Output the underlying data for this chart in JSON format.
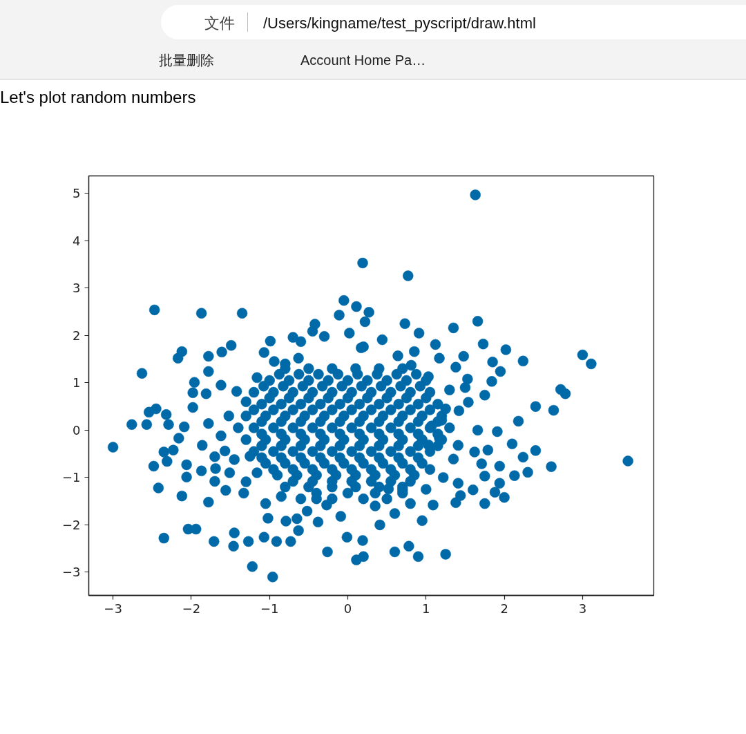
{
  "chart_data": {
    "type": "scatter",
    "title": "Let's plot random numbers",
    "annotations": [
      "文件",
      "/Users/kingname/test_pyscript/draw.html",
      "批量删除",
      "Account Home Pa…"
    ],
    "color": "#0069a8",
    "marker": "circle",
    "grid": false,
    "xlim": [
      -3.31,
      3.91
    ],
    "ylim": [
      -3.49,
      5.37
    ],
    "xticks": [
      {
        "value": -3,
        "label": "−3"
      },
      {
        "value": -2,
        "label": "−2"
      },
      {
        "value": -1,
        "label": "−1"
      },
      0,
      1,
      2,
      3
    ],
    "yticks": [
      {
        "value": -3,
        "label": "−3"
      },
      {
        "value": -2,
        "label": "−2"
      },
      {
        "value": -1,
        "label": "−1"
      },
      0,
      1,
      2,
      3,
      4,
      5
    ],
    "x": [
      1.63,
      0.19,
      0.77,
      -2.47,
      -1.87,
      -1.35,
      -2.63,
      -3.0,
      3.58,
      3.0,
      3.11,
      2.72,
      1.66,
      2.24,
      2.02,
      1.35,
      0.73,
      1.73,
      1.48,
      1.85,
      1.84,
      1.95,
      2.4,
      2.63,
      2.78,
      2.18,
      2.1,
      2.4,
      2.24,
      2.6,
      2.3,
      2.13,
      1.94,
      1.75,
      1.94,
      2.0,
      1.75,
      1.88,
      1.6,
      1.41,
      1.38,
      1.44,
      1.25,
      0.9,
      0.78,
      0.6,
      0.2,
      0.19,
      0.41,
      0.6,
      0.95,
      1.09,
      1.22,
      1.75,
      1.54,
      1.66,
      1.91,
      1.71,
      1.07,
      0.52,
      0.7,
      -2.76,
      -2.57,
      -2.54,
      -2.45,
      -2.32,
      -2.29,
      -2.16,
      -2.09,
      -1.86,
      -2.35,
      -2.23,
      -2.48,
      -2.31,
      -2.06,
      -2.06,
      -1.87,
      -2.42,
      -2.12,
      -1.78,
      -1.7,
      -1.69,
      -1.7,
      -1.56,
      -1.51,
      -1.33,
      -1.3,
      -2.35,
      -2.04,
      -1.94,
      -1.71,
      -1.45,
      -1.46,
      -1.27,
      -1.07,
      -0.91,
      -0.73,
      -0.63,
      -1.22,
      -0.96,
      -0.38,
      -0.26,
      -0.01,
      0.11,
      -1.02,
      -0.79,
      -0.65,
      -0.52,
      -0.27,
      -0.09,
      -1.98,
      -1.98,
      -1.81,
      -1.78,
      -1.57,
      -1.16,
      -2.17,
      -2.12,
      -1.78,
      -1.61,
      -1.49,
      -1.78,
      -1.96,
      -1.07,
      -0.99,
      -0.7,
      -0.6,
      -0.45,
      -0.42,
      -0.3,
      -0.11,
      -0.05,
      0.11,
      0.22,
      0.27,
      0.02,
      -0.8,
      -0.94,
      0.17,
      -1.16,
      -0.63,
      1.03,
      1.2,
      1.41,
      1.35,
      1.62,
      1.79,
      1.42,
      1.17,
      0.44,
      0.91,
      1.12,
      0.85,
      0.64,
      0.81,
      1.17,
      1.38,
      1.53,
      1.03,
      0.2,
      -1.62,
      -1.42,
      -1.3,
      -1.52,
      -1.4,
      -1.62,
      -1.45,
      -1.25,
      1.3,
      1.5,
      1.25,
      -1.05,
      -0.85,
      0.8,
      0.35,
      1.0,
      -0.4,
      -0.8,
      -0.5,
      -0.2,
      0.1,
      0.4,
      0.7,
      -1.0,
      -0.75,
      -0.5,
      -0.25,
      0.0,
      0.25,
      0.5,
      0.75,
      1.0,
      -1.2,
      -0.95,
      -0.7,
      -0.45,
      -0.2,
      0.05,
      0.3,
      0.55,
      0.8,
      1.05,
      -1.1,
      -0.85,
      -0.6,
      -0.35,
      -0.1,
      0.15,
      0.4,
      0.65,
      0.9,
      1.15,
      -1.3,
      -1.05,
      -0.8,
      -0.55,
      -0.3,
      -0.05,
      0.2,
      0.45,
      0.7,
      0.95,
      1.2,
      -1.2,
      -0.95,
      -0.7,
      -0.45,
      -0.2,
      0.05,
      0.3,
      0.55,
      0.8,
      1.05,
      1.3,
      -1.3,
      -1.05,
      -0.8,
      -0.55,
      -0.3,
      -0.05,
      0.2,
      0.45,
      0.7,
      0.95,
      1.2,
      -1.2,
      -0.95,
      -0.7,
      -0.45,
      -0.2,
      0.05,
      0.3,
      0.55,
      0.8,
      1.05,
      -1.05,
      -0.8,
      -0.55,
      -0.3,
      -0.05,
      0.2,
      0.45,
      0.7,
      0.95,
      -0.9,
      -0.65,
      -0.4,
      -0.15,
      0.1,
      0.35,
      0.6,
      0.85,
      -0.8,
      -0.5,
      -0.2,
      0.1,
      0.4,
      0.7,
      -0.6,
      -0.2,
      0.2,
      0.5,
      -0.875,
      -0.625,
      -0.375,
      -0.125,
      0.125,
      0.375,
      0.625,
      0.875,
      -1.075,
      -0.825,
      -0.575,
      -0.325,
      -0.075,
      0.175,
      0.425,
      0.675,
      0.925,
      -1.0,
      -0.75,
      -0.5,
      -0.25,
      0.0,
      0.25,
      0.5,
      0.75,
      1.0,
      -1.2,
      -0.95,
      -0.7,
      -0.45,
      -0.2,
      0.05,
      0.3,
      0.55,
      0.8,
      1.05,
      -1.1,
      -0.85,
      -0.6,
      -0.35,
      -0.1,
      0.15,
      0.4,
      0.65,
      0.9,
      1.15,
      -1.1,
      -0.85,
      -0.6,
      -0.35,
      -0.1,
      0.15,
      0.4,
      0.65,
      0.9,
      1.15,
      -1.1,
      -0.85,
      -0.6,
      -0.35,
      -0.1,
      0.15,
      0.4,
      0.65,
      0.9,
      1.15,
      -1.1,
      -0.85,
      -0.6,
      -0.35,
      -0.1,
      0.15,
      0.4,
      0.65,
      0.9,
      -0.95,
      -0.7,
      -0.45,
      -0.2,
      0.05,
      0.3,
      0.55,
      0.8,
      1.05,
      -0.7,
      -0.45,
      -0.2,
      0.05,
      0.3,
      0.55,
      0.8,
      -0.4,
      0.0,
      0.35,
      0.7
    ],
    "values": [
      4.97,
      3.53,
      3.26,
      2.54,
      2.47,
      2.47,
      1.2,
      -0.36,
      -0.65,
      1.59,
      1.4,
      0.86,
      2.3,
      1.46,
      1.7,
      2.16,
      2.25,
      1.82,
      1.56,
      1.44,
      1.03,
      1.24,
      0.5,
      0.42,
      0.77,
      0.19,
      -0.29,
      -0.43,
      -0.57,
      -0.77,
      -0.89,
      -0.96,
      -0.76,
      -0.97,
      -1.12,
      -1.42,
      -1.55,
      -1.31,
      -1.26,
      -1.12,
      -1.53,
      -1.38,
      -2.62,
      -2.67,
      -2.45,
      -2.57,
      -2.67,
      -2.33,
      -2.0,
      -1.76,
      -1.91,
      -1.58,
      -1.0,
      0.74,
      0.59,
      0.0,
      -0.03,
      -0.71,
      0.09,
      -1.24,
      -1.26,
      0.12,
      0.12,
      0.38,
      0.45,
      0.33,
      0.12,
      -0.17,
      0.07,
      -0.32,
      -0.46,
      -0.42,
      -0.76,
      -0.66,
      -0.73,
      -0.99,
      -0.86,
      -1.22,
      -1.39,
      -1.52,
      -0.56,
      -0.81,
      -1.08,
      -1.27,
      -0.9,
      -1.33,
      -1.09,
      -2.28,
      -2.09,
      -2.09,
      -2.35,
      -2.17,
      -2.45,
      -2.35,
      -2.26,
      -2.35,
      -2.35,
      -2.12,
      -2.88,
      -3.1,
      -1.94,
      -2.57,
      -2.26,
      -2.74,
      -1.86,
      -1.92,
      -1.87,
      -1.71,
      -1.58,
      -1.82,
      0.48,
      0.79,
      0.77,
      0.14,
      -0.44,
      -0.9,
      1.52,
      1.66,
      1.56,
      1.65,
      1.79,
      1.24,
      1.01,
      1.64,
      1.88,
      1.96,
      1.87,
      2.09,
      2.24,
      1.98,
      2.43,
      2.74,
      2.61,
      2.29,
      2.49,
      2.05,
      1.4,
      1.45,
      1.74,
      1.11,
      1.52,
      -0.31,
      0.21,
      -0.32,
      -0.61,
      -0.46,
      -0.42,
      0.41,
      -0.17,
      1.91,
      2.05,
      1.81,
      1.66,
      1.57,
      1.37,
      1.52,
      1.33,
      1.08,
      1.13,
      1.76,
      0.95,
      0.82,
      0.6,
      0.3,
      0.05,
      -0.12,
      -0.62,
      -0.55,
      0.85,
      0.9,
      0.45,
      -1.55,
      -1.4,
      -1.55,
      -1.6,
      -1.25,
      -1.45,
      1.3,
      1.3,
      1.3,
      1.3,
      1.3,
      1.3,
      1.05,
      1.05,
      1.05,
      1.05,
      1.05,
      1.05,
      1.05,
      1.05,
      1.05,
      0.8,
      0.8,
      0.8,
      0.8,
      0.8,
      0.8,
      0.8,
      0.8,
      0.8,
      0.8,
      0.55,
      0.55,
      0.55,
      0.55,
      0.55,
      0.55,
      0.55,
      0.55,
      0.55,
      0.55,
      0.3,
      0.3,
      0.3,
      0.3,
      0.3,
      0.3,
      0.3,
      0.3,
      0.3,
      0.3,
      0.3,
      0.05,
      0.05,
      0.05,
      0.05,
      0.05,
      0.05,
      0.05,
      0.05,
      0.05,
      0.05,
      0.05,
      -0.2,
      -0.2,
      -0.2,
      -0.2,
      -0.2,
      -0.2,
      -0.2,
      -0.2,
      -0.2,
      -0.2,
      -0.2,
      -0.45,
      -0.45,
      -0.45,
      -0.45,
      -0.45,
      -0.45,
      -0.45,
      -0.45,
      -0.45,
      -0.45,
      -0.7,
      -0.7,
      -0.7,
      -0.7,
      -0.7,
      -0.7,
      -0.7,
      -0.7,
      -0.7,
      -0.95,
      -0.95,
      -0.95,
      -0.95,
      -0.95,
      -0.95,
      -0.95,
      -0.95,
      -1.2,
      -1.2,
      -1.2,
      -1.2,
      -1.2,
      -1.2,
      -1.45,
      -1.45,
      -1.45,
      -1.45,
      1.18,
      1.18,
      1.18,
      1.18,
      1.18,
      1.18,
      1.18,
      1.18,
      0.93,
      0.93,
      0.93,
      0.93,
      0.93,
      0.93,
      0.93,
      0.93,
      0.93,
      0.68,
      0.68,
      0.68,
      0.68,
      0.68,
      0.68,
      0.68,
      0.68,
      0.68,
      0.43,
      0.43,
      0.43,
      0.43,
      0.43,
      0.43,
      0.43,
      0.43,
      0.43,
      0.43,
      0.18,
      0.18,
      0.18,
      0.18,
      0.18,
      0.18,
      0.18,
      0.18,
      0.18,
      0.18,
      -0.08,
      -0.08,
      -0.08,
      -0.08,
      -0.08,
      -0.08,
      -0.08,
      -0.08,
      -0.08,
      -0.08,
      -0.33,
      -0.33,
      -0.33,
      -0.33,
      -0.33,
      -0.33,
      -0.33,
      -0.33,
      -0.33,
      -0.33,
      -0.58,
      -0.58,
      -0.58,
      -0.58,
      -0.58,
      -0.58,
      -0.58,
      -0.58,
      -0.58,
      -0.83,
      -0.83,
      -0.83,
      -0.83,
      -0.83,
      -0.83,
      -0.83,
      -0.83,
      -0.83,
      -1.08,
      -1.08,
      -1.08,
      -1.08,
      -1.08,
      -1.08,
      -1.08,
      -1.33,
      -1.33,
      -1.33,
      -1.33
    ]
  }
}
